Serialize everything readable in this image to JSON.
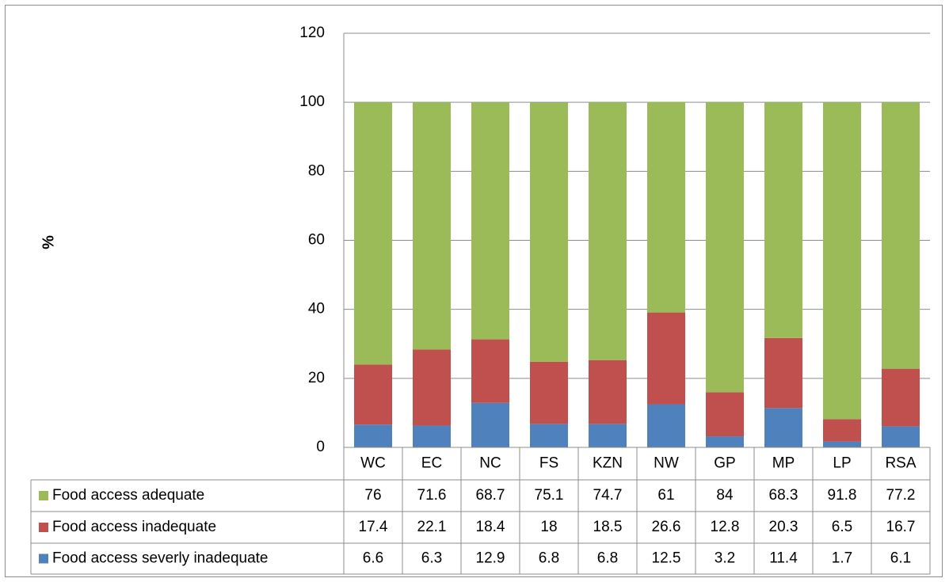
{
  "chart_data": {
    "type": "bar",
    "stacked": true,
    "categories": [
      "WC",
      "EC",
      "NC",
      "FS",
      "KZN",
      "NW",
      "GP",
      "MP",
      "LP",
      "RSA"
    ],
    "series": [
      {
        "name": "Food access adequate",
        "color": "#9bbb59",
        "values": [
          76,
          71.6,
          68.7,
          75.1,
          74.7,
          61,
          84,
          68.3,
          91.8,
          77.2
        ]
      },
      {
        "name": "Food access  inadequate",
        "color": "#c0504d",
        "values": [
          17.4,
          22.1,
          18.4,
          18,
          18.5,
          26.6,
          12.8,
          20.3,
          6.5,
          16.7
        ]
      },
      {
        "name": "Food access severly inadequate",
        "color": "#4f81bd",
        "values": [
          6.6,
          6.3,
          12.9,
          6.8,
          6.8,
          12.5,
          3.2,
          11.4,
          1.7,
          6.1
        ]
      }
    ],
    "ylabel": "%",
    "ylim": [
      0,
      120
    ],
    "yticks": [
      0,
      20,
      40,
      60,
      80,
      100,
      120
    ],
    "grid": true,
    "legend": "data-table"
  }
}
